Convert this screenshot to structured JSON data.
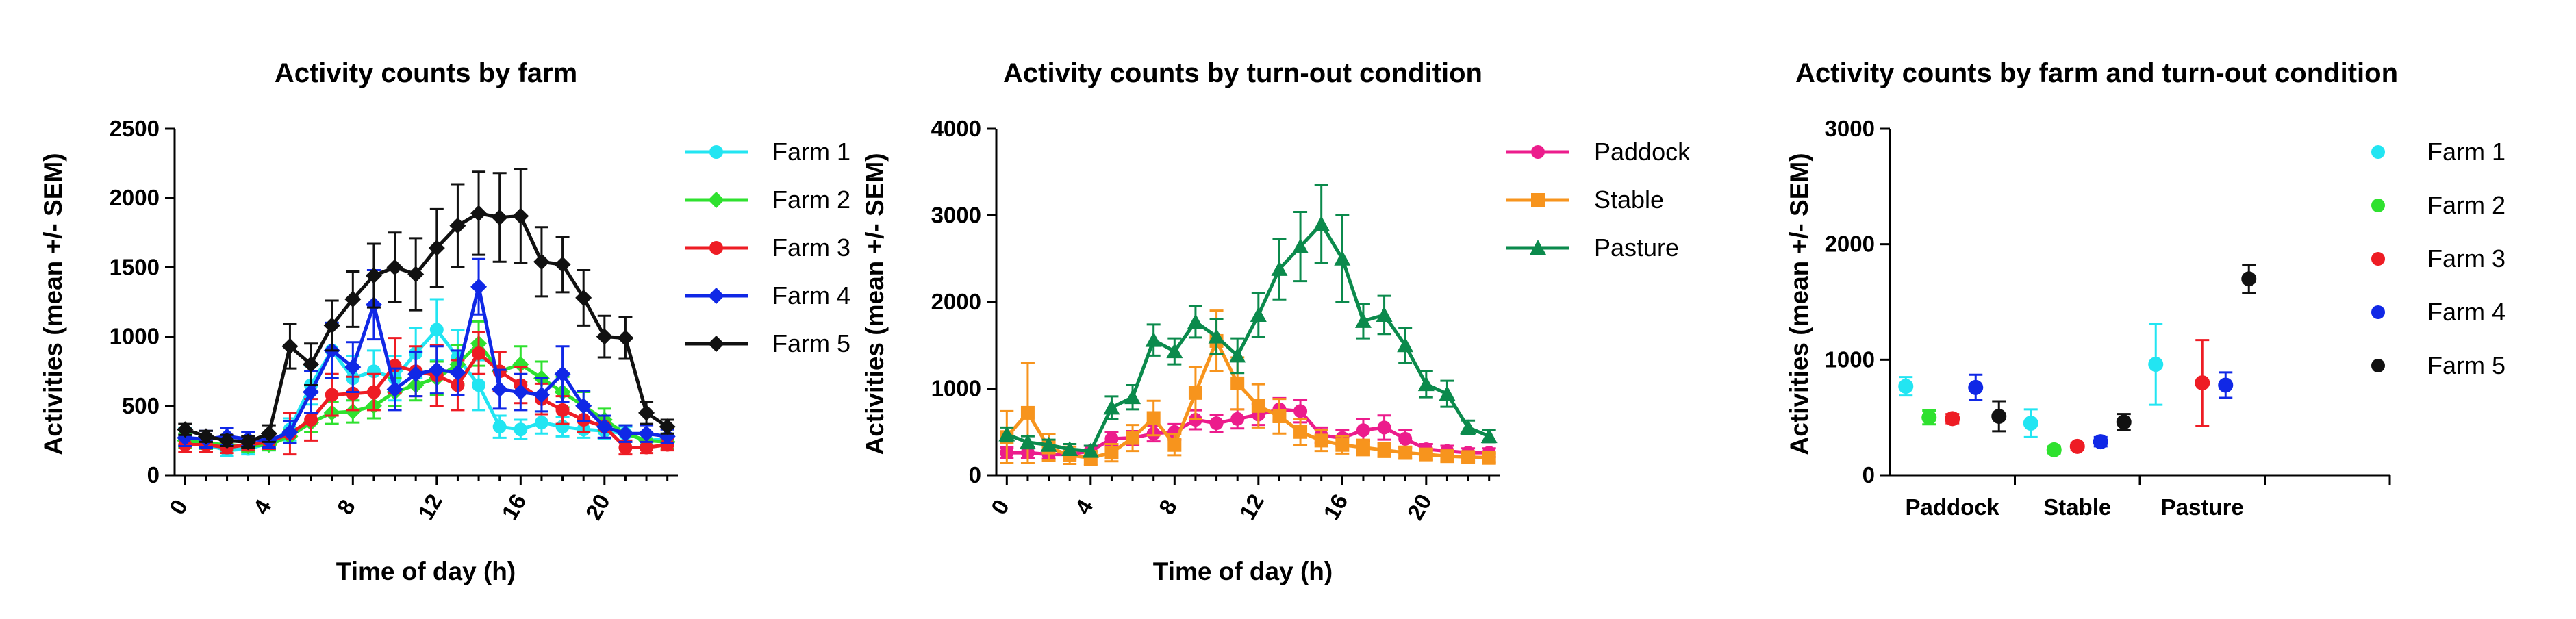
{
  "colors": {
    "farm1": "#22e5f2",
    "farm2": "#2fe12f",
    "farm3": "#ee1c24",
    "farm4": "#1028e6",
    "farm5": "#111111",
    "paddock": "#ec1c8c",
    "stable": "#f7941d",
    "pasture": "#0b8a4c"
  },
  "chart_data": [
    {
      "type": "line",
      "title": "Activity counts by farm",
      "xlabel": "Time of day (h)",
      "ylabel": "Activities (mean +/- SEM)",
      "xlim": [
        -0.5,
        23.5
      ],
      "ylim": [
        0,
        2500
      ],
      "xticks": [
        0,
        4,
        8,
        12,
        16,
        20
      ],
      "yticks": [
        0,
        500,
        1000,
        1500,
        2000,
        2500
      ],
      "x": [
        0,
        1,
        2,
        3,
        4,
        5,
        6,
        7,
        8,
        9,
        10,
        11,
        12,
        13,
        14,
        15,
        16,
        17,
        18,
        19,
        20,
        21,
        22,
        23
      ],
      "series": [
        {
          "name": "Farm 1",
          "color_key": "farm1",
          "marker": "circle",
          "values": [
            280,
            220,
            180,
            190,
            230,
            330,
            650,
            900,
            700,
            750,
            700,
            880,
            1050,
            850,
            650,
            350,
            330,
            380,
            350,
            330,
            320,
            300,
            250,
            260
          ],
          "err": [
            60,
            50,
            40,
            40,
            50,
            80,
            140,
            200,
            160,
            150,
            160,
            180,
            220,
            200,
            180,
            80,
            70,
            80,
            70,
            60,
            60,
            50,
            40,
            40
          ]
        },
        {
          "name": "Farm 2",
          "color_key": "farm2",
          "marker": "diamond",
          "values": [
            250,
            230,
            220,
            210,
            220,
            280,
            380,
            450,
            460,
            500,
            600,
            650,
            700,
            800,
            950,
            750,
            800,
            700,
            600,
            500,
            400,
            300,
            250,
            240
          ],
          "err": [
            50,
            40,
            40,
            40,
            40,
            50,
            70,
            80,
            80,
            90,
            100,
            110,
            120,
            140,
            160,
            140,
            130,
            120,
            110,
            100,
            80,
            60,
            50,
            50
          ]
        },
        {
          "name": "Farm 3",
          "color_key": "farm3",
          "marker": "circle",
          "values": [
            220,
            220,
            200,
            220,
            240,
            300,
            400,
            580,
            590,
            600,
            790,
            750,
            720,
            650,
            880,
            750,
            650,
            550,
            470,
            400,
            350,
            200,
            200,
            220
          ],
          "err": [
            50,
            50,
            40,
            40,
            50,
            150,
            150,
            150,
            120,
            130,
            200,
            180,
            220,
            180,
            150,
            140,
            130,
            110,
            100,
            90,
            80,
            50,
            40,
            40
          ]
        },
        {
          "name": "Farm 4",
          "color_key": "farm4",
          "marker": "diamond",
          "values": [
            270,
            260,
            280,
            260,
            250,
            310,
            600,
            900,
            780,
            1230,
            620,
            730,
            760,
            740,
            1360,
            620,
            600,
            580,
            730,
            500,
            350,
            300,
            300,
            280
          ],
          "err": [
            60,
            60,
            60,
            50,
            50,
            80,
            150,
            200,
            180,
            250,
            150,
            160,
            170,
            160,
            200,
            140,
            130,
            120,
            200,
            110,
            80,
            60,
            60,
            50
          ]
        },
        {
          "name": "Farm 5",
          "color_key": "farm5",
          "marker": "diamond",
          "values": [
            330,
            280,
            250,
            240,
            300,
            930,
            800,
            1080,
            1270,
            1440,
            1500,
            1450,
            1640,
            1800,
            1890,
            1860,
            1870,
            1540,
            1520,
            1280,
            1000,
            990,
            450,
            350
          ],
          "err": [
            40,
            40,
            40,
            40,
            60,
            160,
            150,
            180,
            200,
            230,
            250,
            260,
            280,
            300,
            300,
            320,
            340,
            250,
            200,
            200,
            150,
            150,
            80,
            50
          ]
        }
      ]
    },
    {
      "type": "line",
      "title": "Activity counts by turn-out condition",
      "xlabel": "Time of day (h)",
      "ylabel": "Activities (mean +/- SEM)",
      "xlim": [
        -0.5,
        23.5
      ],
      "ylim": [
        0,
        4000
      ],
      "xticks": [
        0,
        4,
        8,
        12,
        16,
        20
      ],
      "yticks": [
        0,
        1000,
        2000,
        3000,
        4000
      ],
      "x": [
        0,
        1,
        2,
        3,
        4,
        5,
        6,
        7,
        8,
        9,
        10,
        11,
        12,
        13,
        14,
        15,
        16,
        17,
        18,
        19,
        20,
        21,
        22,
        23
      ],
      "series": [
        {
          "name": "Paddock",
          "color_key": "paddock",
          "marker": "circle",
          "values": [
            260,
            260,
            240,
            240,
            280,
            420,
            430,
            480,
            500,
            640,
            600,
            650,
            700,
            760,
            740,
            460,
            430,
            520,
            550,
            420,
            300,
            280,
            260,
            260
          ],
          "err": [
            60,
            60,
            50,
            50,
            60,
            80,
            80,
            90,
            90,
            110,
            100,
            110,
            120,
            130,
            130,
            90,
            90,
            130,
            140,
            100,
            60,
            60,
            50,
            50
          ]
        },
        {
          "name": "Stable",
          "color_key": "stable",
          "marker": "square",
          "values": [
            440,
            720,
            320,
            230,
            200,
            260,
            430,
            660,
            350,
            950,
            1550,
            1060,
            800,
            680,
            500,
            400,
            350,
            320,
            290,
            260,
            240,
            220,
            210,
            200
          ],
          "err": [
            300,
            580,
            150,
            100,
            80,
            100,
            150,
            200,
            120,
            300,
            350,
            300,
            250,
            200,
            150,
            120,
            100,
            90,
            80,
            70,
            60,
            60,
            50,
            50
          ]
        },
        {
          "name": "Pasture",
          "color_key": "pasture",
          "marker": "triangle",
          "values": [
            470,
            380,
            350,
            300,
            280,
            780,
            900,
            1560,
            1430,
            1770,
            1600,
            1380,
            1850,
            2380,
            2640,
            2900,
            2500,
            1780,
            1850,
            1500,
            1050,
            940,
            550,
            450
          ],
          "err": [
            80,
            70,
            60,
            60,
            60,
            130,
            140,
            180,
            150,
            180,
            200,
            200,
            250,
            350,
            400,
            450,
            500,
            200,
            220,
            200,
            150,
            150,
            80,
            70
          ]
        }
      ]
    },
    {
      "type": "scatter",
      "title": "Activity counts by farm and turn-out condition",
      "ylabel": "Activities (mean +/- SEM)",
      "categories": [
        "Paddock",
        "Stable",
        "Pasture"
      ],
      "ylim": [
        0,
        3000
      ],
      "yticks": [
        0,
        1000,
        2000,
        3000
      ],
      "series": [
        {
          "name": "Farm 1",
          "color_key": "farm1",
          "values": [
            770,
            450,
            960
          ],
          "err": [
            80,
            120,
            350
          ]
        },
        {
          "name": "Farm 2",
          "color_key": "farm2",
          "values": [
            500,
            220,
            null
          ],
          "err": [
            60,
            30,
            null
          ]
        },
        {
          "name": "Farm 3",
          "color_key": "farm3",
          "values": [
            490,
            250,
            800
          ],
          "err": [
            40,
            30,
            370
          ]
        },
        {
          "name": "Farm 4",
          "color_key": "farm4",
          "values": [
            760,
            290,
            780
          ],
          "err": [
            110,
            40,
            110
          ]
        },
        {
          "name": "Farm 5",
          "color_key": "farm5",
          "values": [
            510,
            460,
            1700
          ],
          "err": [
            130,
            70,
            120
          ]
        }
      ]
    }
  ]
}
